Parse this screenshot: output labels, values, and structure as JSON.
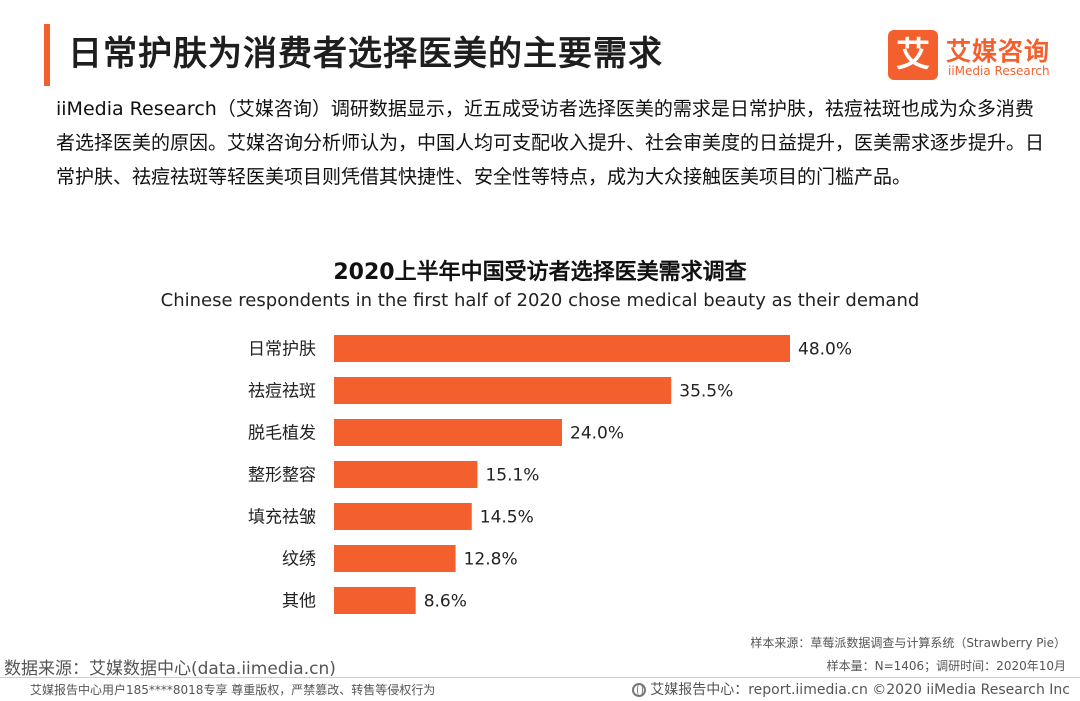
{
  "header": {
    "title": "日常护肤为消费者选择医美的主要需求",
    "accent_color": "#f4602d"
  },
  "logo": {
    "mark": "艾",
    "name_cn": "艾媒咨询",
    "name_en": "iiMedia Research"
  },
  "intro": "iiMedia Research（艾媒咨询）调研数据显示，近五成受访者选择医美的需求是日常护肤，祛痘祛斑也成为众多消费者选择医美的原因。艾媒咨询分析师认为，中国人均可支配收入提升、社会审美度的日益提升，医美需求逐步提升。日常护肤、祛痘祛斑等轻医美项目则凭借其快捷性、安全性等特点，成为大众接触医美项目的门槛产品。",
  "chart_data": {
    "type": "bar",
    "orientation": "horizontal",
    "title": "2020上半年中国受访者选择医美需求调查",
    "subtitle": "Chinese respondents in the first half of 2020 chose medical beauty as their demand",
    "categories": [
      "日常护肤",
      "祛痘祛斑",
      "脱毛植发",
      "整形整容",
      "填充祛皱",
      "纹绣",
      "其他"
    ],
    "values": [
      48.0,
      35.5,
      24.0,
      15.1,
      14.5,
      12.8,
      8.6
    ],
    "value_labels": [
      "48.0%",
      "35.5%",
      "24.0%",
      "15.1%",
      "14.5%",
      "12.8%",
      "8.6%"
    ],
    "unit": "%",
    "xlim": [
      0,
      48.0
    ],
    "bar_color": "#f4602d",
    "grid": false,
    "legend": "none"
  },
  "sources": {
    "sample_source": "样本来源：草莓派数据调查与计算系统（Strawberry Pie）",
    "sample_meta": "样本量：N=1406；调研时间：2020年10月",
    "data_source": "数据来源：艾媒数据中心(data.iimedia.cn)"
  },
  "footer": {
    "left": "艾媒报告中心用户185****8018专享 尊重版权，严禁篡改、转售等侵权行为",
    "right": "艾媒报告中心：report.iimedia.cn  ©2020  iiMedia Research  Inc",
    "icon": "globe-icon"
  }
}
